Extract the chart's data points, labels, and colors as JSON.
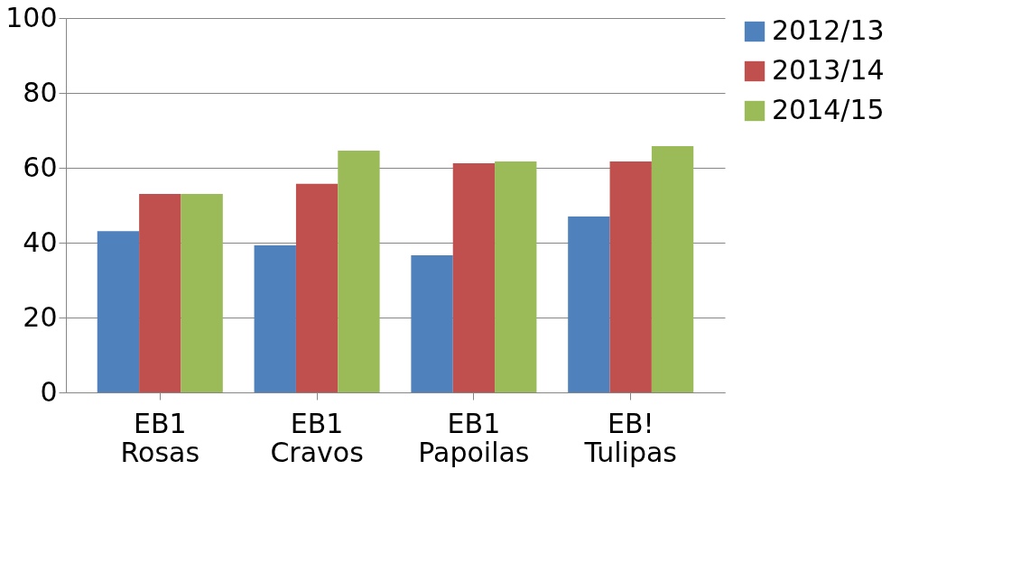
{
  "chart_data": {
    "type": "bar",
    "categories": [
      "EB1 Rosas",
      "EB1 Cravos",
      "EB1 Papoilas",
      "EB! Tulipas"
    ],
    "series": [
      {
        "name": "2012/13",
        "color": "#4f81bd",
        "values": [
          43.1,
          39.3,
          36.6,
          47
        ]
      },
      {
        "name": "2013/14",
        "color": "#c0504d",
        "values": [
          53,
          55.7,
          61.2,
          61.7
        ]
      },
      {
        "name": "2014/15",
        "color": "#9bbb59",
        "values": [
          53,
          64.6,
          61.7,
          65.8
        ]
      }
    ],
    "ylim": [
      0,
      100
    ],
    "yticks": [
      0,
      20,
      40,
      60,
      80,
      100
    ],
    "grid": "y",
    "legend": "right"
  }
}
